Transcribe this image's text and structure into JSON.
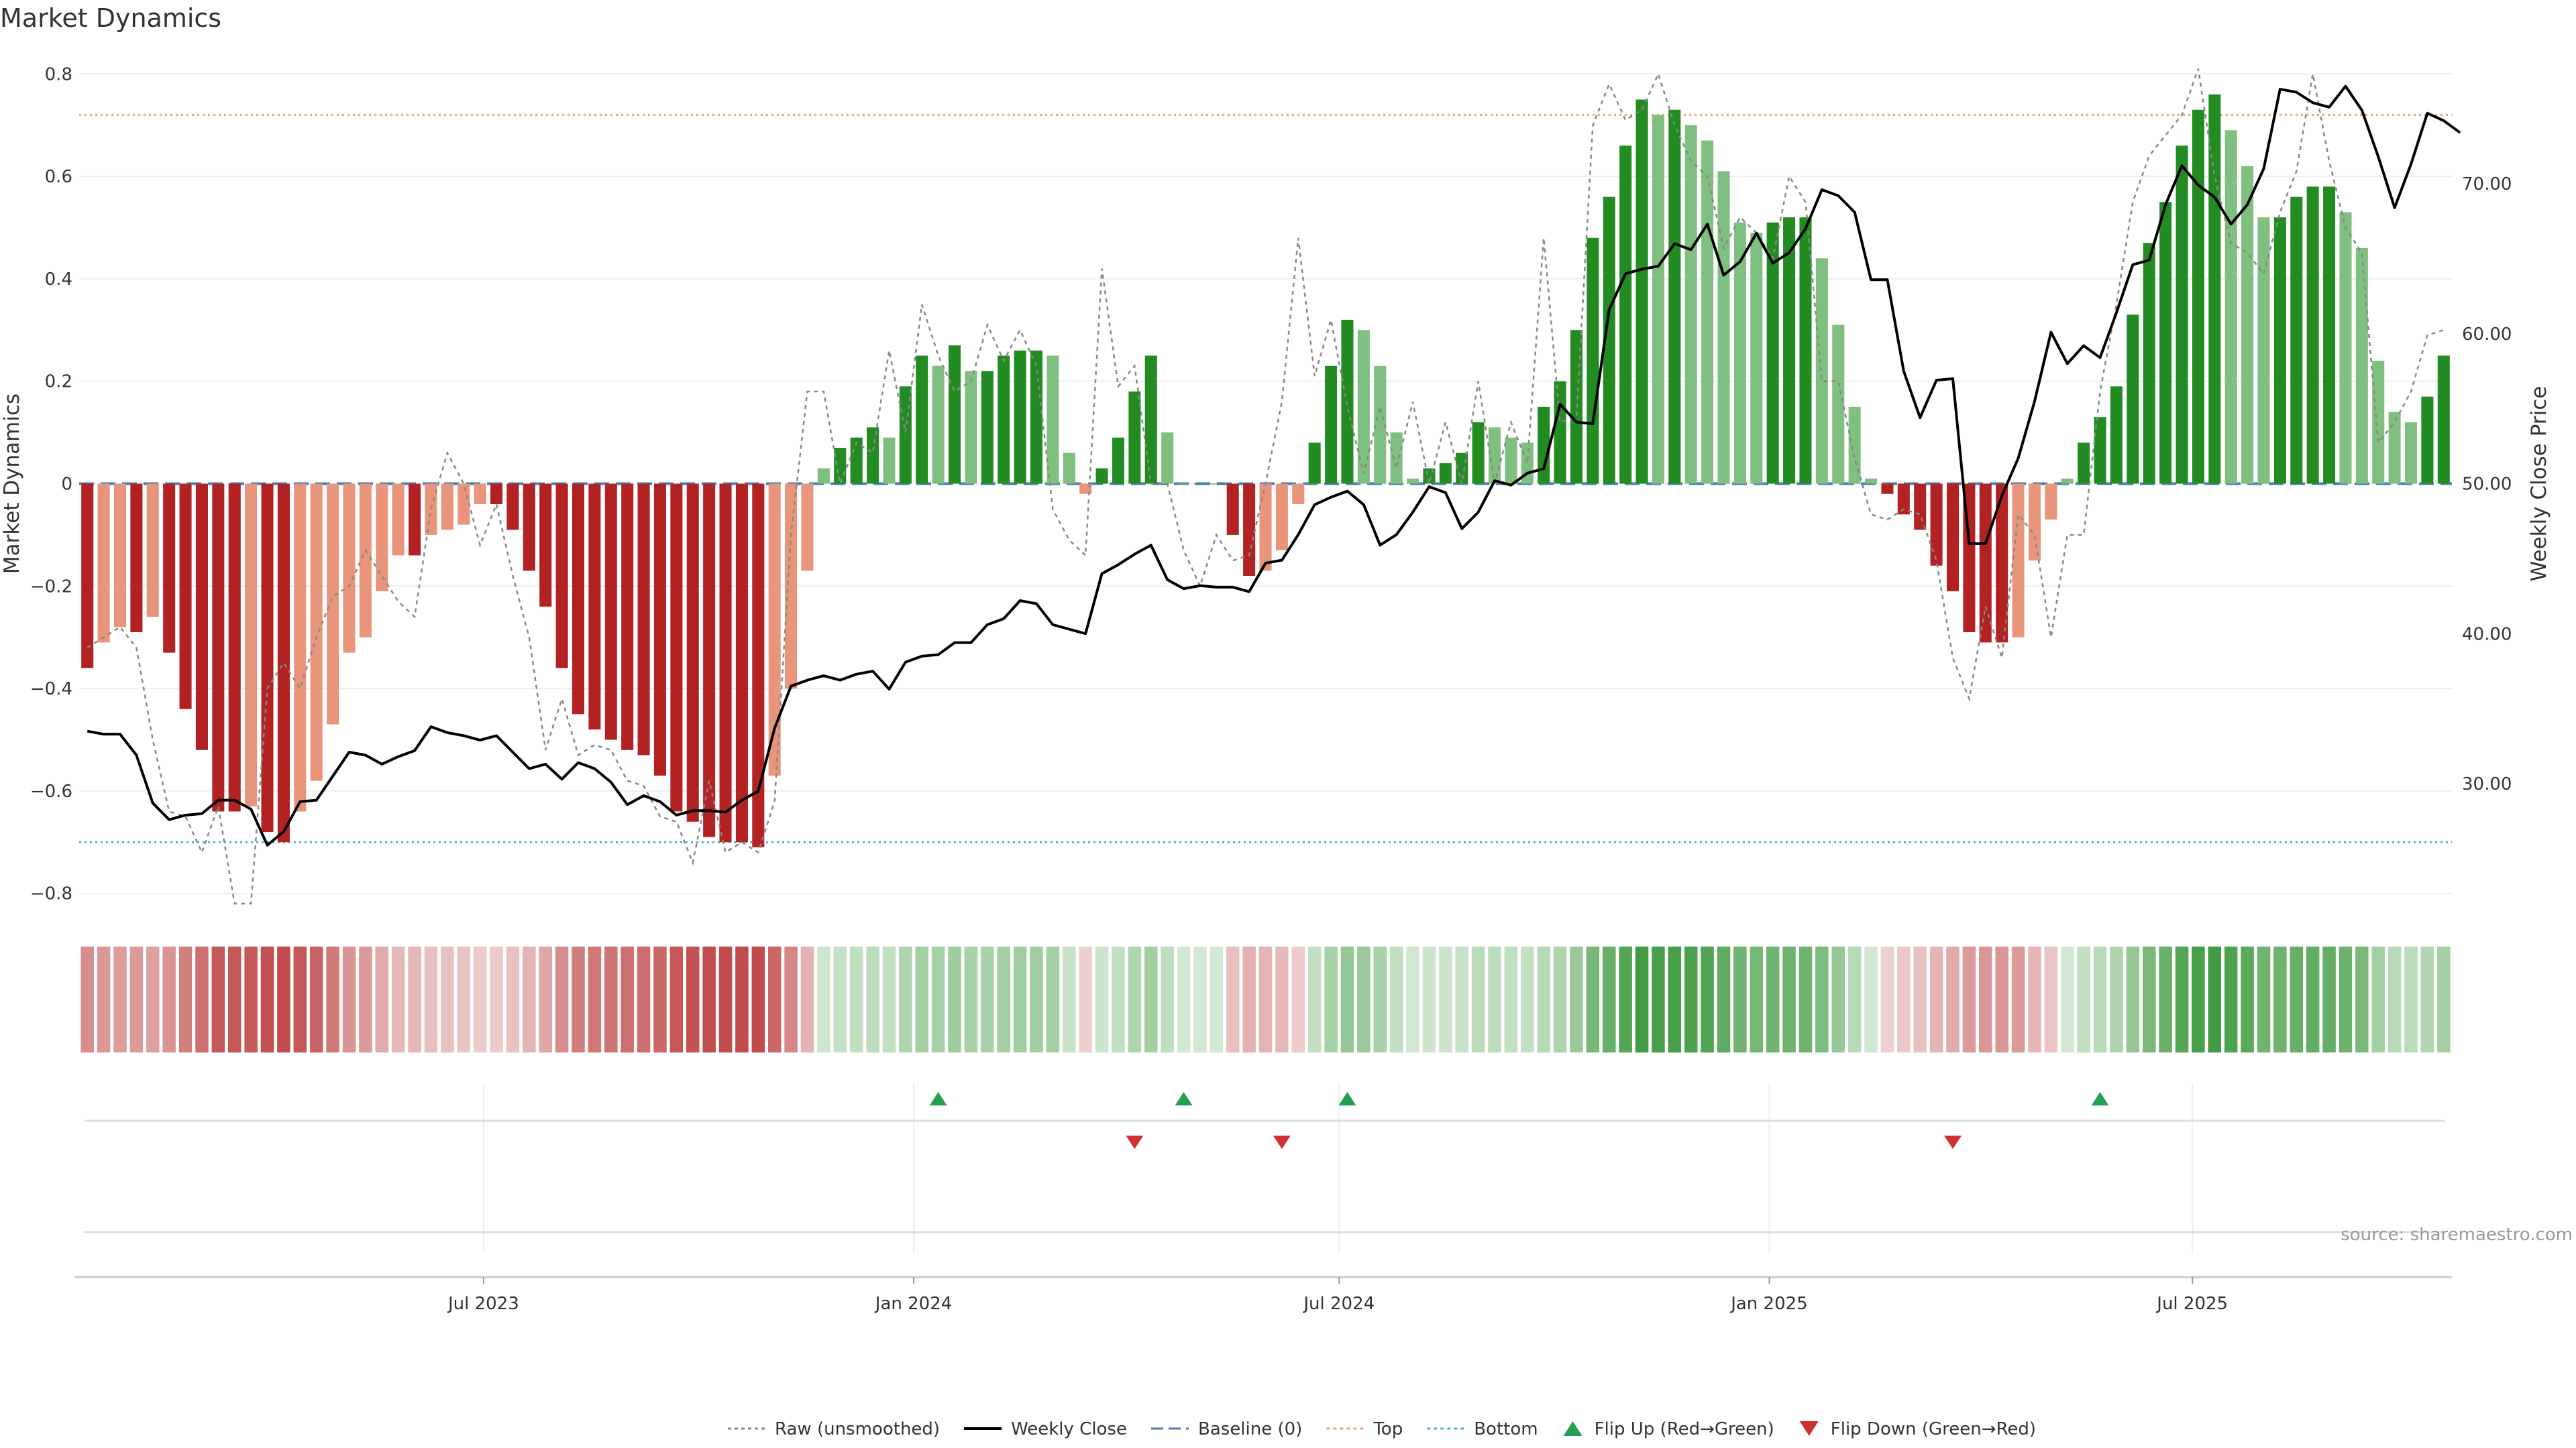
{
  "title": "Market Dynamics",
  "source_label": "source: sharemaestro.com",
  "colors": {
    "strong_green": "#228b22",
    "light_green": "#7fbf7f",
    "strong_red": "#b22222",
    "light_red": "#e8957b",
    "raw": "#888888",
    "close": "#000000",
    "baseline": "#4a7fb0",
    "top": "#f0a070",
    "bottom": "#4ab0d0",
    "flip_up": "#22a050",
    "flip_down": "#d03030"
  },
  "chart_data": {
    "type": "bar",
    "start_date": "2023-01-09",
    "week_days": 7,
    "left_axis": {
      "label": "Market Dynamics",
      "range": [
        -0.82,
        0.82
      ],
      "ticks": [
        -0.8,
        -0.6,
        -0.4,
        -0.2,
        0,
        0.2,
        0.4,
        0.6,
        0.8
      ],
      "tick_labels": [
        "−0.8",
        "−0.6",
        "−0.4",
        "−0.2",
        "0",
        "0.2",
        "0.4",
        "0.6",
        "0.8"
      ]
    },
    "right_axis": {
      "label": "Weekly Close Price",
      "range": [
        22,
        78
      ],
      "ticks": [
        30,
        40,
        50,
        60,
        70
      ],
      "tick_labels": [
        "30.00",
        "40.00",
        "50.00",
        "60.00",
        "70.00"
      ]
    },
    "x_axis": {
      "tick_dates": [
        "2023-07-01",
        "2024-01-01",
        "2024-07-01",
        "2025-01-01",
        "2025-07-01"
      ],
      "tick_labels": [
        "Jul 2023",
        "Jan 2024",
        "Jul 2024",
        "Jan 2025",
        "Jul 2025"
      ]
    },
    "reference_lines": {
      "baseline": 0,
      "top": 0.72,
      "bottom": -0.7
    },
    "series": [
      {
        "name": "Market Dynamics",
        "values": [
          -0.36,
          -0.31,
          -0.28,
          -0.29,
          -0.26,
          -0.33,
          -0.44,
          -0.52,
          -0.64,
          -0.64,
          -0.63,
          -0.68,
          -0.7,
          -0.64,
          -0.58,
          -0.47,
          -0.33,
          -0.3,
          -0.21,
          -0.14,
          -0.14,
          -0.1,
          -0.09,
          -0.08,
          -0.04,
          -0.04,
          -0.09,
          -0.17,
          -0.24,
          -0.36,
          -0.45,
          -0.48,
          -0.5,
          -0.52,
          -0.53,
          -0.57,
          -0.64,
          -0.66,
          -0.69,
          -0.7,
          -0.7,
          -0.71,
          -0.57,
          -0.4,
          -0.17,
          0.03,
          0.07,
          0.09,
          0.11,
          0.09,
          0.19,
          0.25,
          0.23,
          0.27,
          0.22,
          0.22,
          0.25,
          0.26,
          0.26,
          0.25,
          0.06,
          -0.02,
          0.03,
          0.09,
          0.18,
          0.25,
          0.1,
          0.0,
          0.0,
          0.0,
          -0.1,
          -0.18,
          -0.17,
          -0.13,
          -0.04,
          0.08,
          0.23,
          0.32,
          0.3,
          0.23,
          0.1,
          0.01,
          0.03,
          0.04,
          0.06,
          0.12,
          0.11,
          0.09,
          0.08,
          0.15,
          0.2,
          0.3,
          0.48,
          0.56,
          0.66,
          0.75,
          0.72,
          0.73,
          0.7,
          0.67,
          0.61,
          0.51,
          0.49,
          0.51,
          0.52,
          0.52,
          0.44,
          0.31,
          0.15,
          0.01,
          -0.02,
          -0.06,
          -0.09,
          -0.16,
          -0.21,
          -0.29,
          -0.31,
          -0.31,
          -0.3,
          -0.15,
          -0.07,
          0.01,
          0.08,
          0.13,
          0.19,
          0.33,
          0.47,
          0.55,
          0.66,
          0.73,
          0.76,
          0.69,
          0.62,
          0.52,
          0.52,
          0.56,
          0.58,
          0.58,
          0.53,
          0.46,
          0.24,
          0.14,
          0.12,
          0.17,
          0.25
        ]
      },
      {
        "name": "Raw (unsmoothed)",
        "values": [
          -0.32,
          -0.3,
          -0.28,
          -0.32,
          -0.5,
          -0.64,
          -0.65,
          -0.72,
          -0.63,
          -0.82,
          -0.82,
          -0.4,
          -0.35,
          -0.4,
          -0.3,
          -0.22,
          -0.2,
          -0.13,
          -0.18,
          -0.23,
          -0.26,
          -0.05,
          0.06,
          0.0,
          -0.12,
          -0.04,
          -0.18,
          -0.3,
          -0.52,
          -0.42,
          -0.53,
          -0.51,
          -0.52,
          -0.58,
          -0.59,
          -0.65,
          -0.66,
          -0.74,
          -0.58,
          -0.72,
          -0.7,
          -0.72,
          -0.62,
          -0.1,
          0.18,
          0.18,
          0.0,
          0.08,
          0.06,
          0.26,
          0.1,
          0.35,
          0.25,
          0.18,
          0.2,
          0.31,
          0.24,
          0.3,
          0.23,
          -0.05,
          -0.11,
          -0.14,
          0.42,
          0.19,
          0.23,
          0.0,
          0.0,
          -0.13,
          -0.2,
          -0.1,
          -0.15,
          -0.14,
          0.0,
          0.16,
          0.48,
          0.21,
          0.32,
          0.15,
          0.02,
          0.15,
          0.03,
          0.16,
          0.0,
          0.12,
          0.0,
          0.2,
          0.0,
          0.12,
          0.04,
          0.48,
          0.12,
          0.13,
          0.7,
          0.78,
          0.71,
          0.73,
          0.8,
          0.7,
          0.63,
          0.6,
          0.46,
          0.52,
          0.49,
          0.44,
          0.6,
          0.55,
          0.2,
          0.2,
          0.05,
          -0.06,
          -0.07,
          -0.05,
          -0.06,
          -0.15,
          -0.34,
          -0.42,
          -0.24,
          -0.34,
          -0.06,
          -0.1,
          -0.3,
          -0.1,
          -0.1,
          0.18,
          0.35,
          0.55,
          0.64,
          0.68,
          0.72,
          0.81,
          0.6,
          0.47,
          0.45,
          0.41,
          0.53,
          0.61,
          0.8,
          0.63,
          0.5,
          0.45,
          0.08,
          0.12,
          0.18,
          0.29,
          0.3
        ]
      },
      {
        "name": "Weekly Close",
        "values": [
          33.5,
          33.3,
          33.3,
          31.9,
          28.7,
          27.6,
          27.9,
          28.0,
          28.9,
          28.9,
          28.3,
          25.9,
          26.8,
          28.8,
          28.9,
          30.5,
          32.1,
          31.9,
          31.3,
          31.8,
          32.2,
          33.8,
          33.4,
          33.2,
          32.9,
          33.2,
          32.1,
          31.0,
          31.3,
          30.3,
          31.4,
          31.0,
          30.1,
          28.6,
          29.2,
          28.8,
          27.9,
          28.2,
          28.2,
          28.1,
          28.9,
          29.5,
          33.7,
          36.5,
          36.9,
          37.2,
          36.9,
          37.3,
          37.5,
          36.3,
          38.1,
          38.5,
          38.6,
          39.4,
          39.4,
          40.6,
          41.0,
          42.2,
          42.0,
          40.6,
          40.3,
          40.0,
          44.0,
          44.6,
          45.3,
          45.9,
          43.6,
          43.0,
          43.2,
          43.1,
          43.1,
          42.8,
          44.7,
          44.9,
          46.6,
          48.6,
          49.1,
          49.5,
          48.6,
          45.9,
          46.6,
          48.1,
          49.8,
          49.4,
          47.0,
          48.1,
          50.2,
          49.9,
          50.7,
          51.0,
          55.3,
          54.1,
          54.0,
          61.6,
          64.0,
          64.3,
          64.5,
          66.0,
          65.6,
          67.3,
          63.9,
          64.8,
          66.7,
          64.7,
          65.4,
          67.0,
          69.6,
          69.2,
          68.1,
          63.6,
          63.6,
          57.5,
          54.4,
          56.9,
          57.0,
          46.0,
          46.0,
          49.2,
          51.7,
          55.5,
          60.1,
          58.0,
          59.2,
          58.4,
          61.4,
          64.6,
          64.9,
          68.6,
          71.2,
          69.9,
          69.1,
          67.3,
          68.6,
          71.0,
          76.3,
          76.1,
          75.4,
          75.1,
          76.5,
          74.9,
          71.8,
          68.4,
          71.3,
          74.7,
          74.2,
          73.4
        ]
      }
    ],
    "flips_up": [
      "2024-01-08",
      "2024-04-22",
      "2024-07-01",
      "2025-05-19"
    ],
    "flips_down": [
      "2024-04-01",
      "2024-06-03",
      "2025-03-17"
    ],
    "legend": [
      {
        "label": "Raw (unsmoothed)",
        "style": "dotted",
        "color": "#888888"
      },
      {
        "label": "Weekly Close",
        "style": "solid",
        "color": "#000000"
      },
      {
        "label": "Baseline (0)",
        "style": "dashed",
        "color": "#4a7fb0"
      },
      {
        "label": "Top",
        "style": "dotted",
        "color": "#f0a070"
      },
      {
        "label": "Bottom",
        "style": "dotted",
        "color": "#4ab0d0"
      },
      {
        "label": "Flip Up (Red→Green)",
        "style": "triangle-up",
        "color": "#22a050"
      },
      {
        "label": "Flip Down (Green→Red)",
        "style": "triangle-down",
        "color": "#d03030"
      }
    ],
    "legend_position": "bottom-center",
    "grid": true
  }
}
